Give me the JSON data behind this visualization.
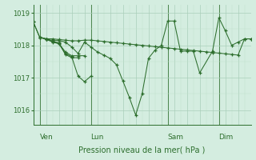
{
  "background_color": "#d4ede0",
  "line_color": "#2d6e2d",
  "grid_major_color": "#aacfba",
  "grid_minor_color": "#c0dfcc",
  "xlabel": "Pression niveau de la mer( hPa )",
  "ylim": [
    1015.55,
    1019.25
  ],
  "yticks": [
    1016,
    1017,
    1018,
    1019
  ],
  "day_labels": [
    "Ven",
    "Lun",
    "Sam",
    "Dim"
  ],
  "day_positions": [
    6,
    54,
    126,
    174
  ],
  "xlim": [
    0,
    204
  ],
  "series": [
    {
      "x": [
        0,
        6,
        12,
        18,
        24,
        30,
        36,
        42,
        48,
        54,
        60,
        66,
        72,
        78,
        84,
        90,
        96,
        102,
        108,
        114,
        120,
        126,
        132,
        138,
        144,
        150,
        156,
        162,
        168,
        174,
        180,
        186,
        192,
        198,
        204
      ],
      "y": [
        1018.72,
        1018.25,
        1018.2,
        1018.2,
        1018.18,
        1018.16,
        1018.14,
        1018.14,
        1018.16,
        1018.16,
        1018.14,
        1018.12,
        1018.1,
        1018.08,
        1018.06,
        1018.04,
        1018.02,
        1018.0,
        1017.98,
        1017.96,
        1017.94,
        1017.92,
        1017.9,
        1017.88,
        1017.86,
        1017.84,
        1017.82,
        1017.8,
        1017.78,
        1017.76,
        1017.74,
        1017.72,
        1017.7,
        1018.2,
        1018.2
      ]
    },
    {
      "x": [
        0,
        6,
        12,
        18,
        24,
        30,
        36,
        42,
        48,
        54,
        60,
        66,
        72,
        78,
        84,
        90,
        96,
        102,
        108,
        114,
        120,
        126,
        132,
        138,
        144,
        150,
        156,
        168,
        174,
        180,
        186,
        192,
        198,
        204
      ],
      "y": [
        1018.72,
        1018.25,
        1018.2,
        1018.15,
        1018.15,
        1018.1,
        1017.95,
        1017.75,
        1018.1,
        1017.95,
        1017.8,
        1017.7,
        1017.6,
        1017.4,
        1016.9,
        1016.4,
        1015.85,
        1016.5,
        1017.6,
        1017.85,
        1018.0,
        1018.75,
        1018.75,
        1017.82,
        1017.82,
        1017.82,
        1017.15,
        1017.82,
        1018.85,
        1018.45,
        1018.0,
        1018.1,
        1018.2,
        1018.2
      ]
    },
    {
      "x": [
        6,
        12,
        18,
        24,
        30,
        36,
        42,
        48,
        54
      ],
      "y": [
        1018.25,
        1018.2,
        1018.1,
        1018.05,
        1017.75,
        1017.65,
        1017.05,
        1016.88,
        1017.05
      ]
    },
    {
      "x": [
        6,
        12,
        18,
        24,
        30,
        36,
        42
      ],
      "y": [
        1018.25,
        1018.18,
        1018.12,
        1018.08,
        1017.72,
        1017.62,
        1017.62
      ]
    },
    {
      "x": [
        12,
        18,
        24,
        30,
        36,
        42,
        48
      ],
      "y": [
        1018.2,
        1018.12,
        1018.06,
        1017.8,
        1017.68,
        1017.68,
        1017.68
      ]
    }
  ]
}
